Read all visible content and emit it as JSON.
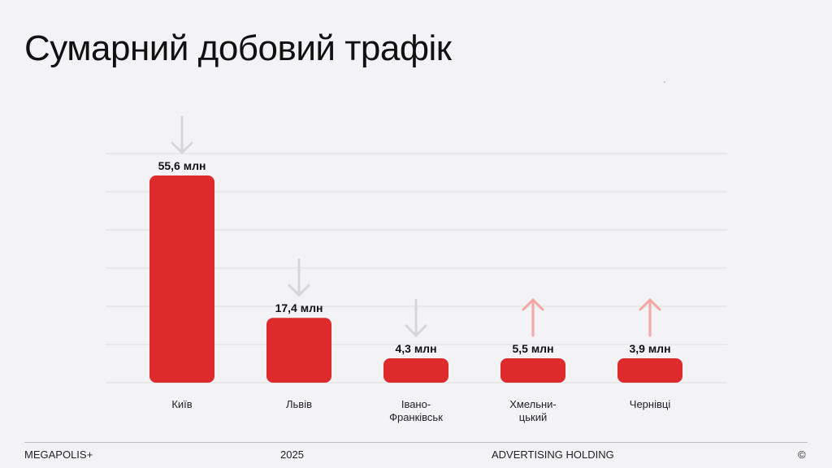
{
  "page": {
    "title": "Сумарний добовий трафік"
  },
  "footer": {
    "brand": "MEGAPOLIS+",
    "year": "2025",
    "holding": "ADVERTISING HOLDING",
    "copyright": "©"
  },
  "colors": {
    "bar": "#dd2a2a",
    "arrow_down": "#d6d6d9",
    "arrow_up": "#f4a5a5",
    "grid": "#dcdce0"
  },
  "chart_data": {
    "type": "bar",
    "categories": [
      "Київ",
      "Львів",
      "Івано-Франківськ",
      "Хмельницький",
      "Чернівці"
    ],
    "category_labels": [
      [
        "Київ"
      ],
      [
        "Львів"
      ],
      [
        "Івано-",
        "Франківськ"
      ],
      [
        "Хмельни-",
        "цький"
      ],
      [
        "Чернівці"
      ]
    ],
    "values": [
      55.6,
      17.4,
      4.3,
      5.5,
      3.9
    ],
    "value_labels": [
      "55,6 млн",
      "17,4 млн",
      "4,3 млн",
      "5,5 млн",
      "3,9 млн"
    ],
    "trend": [
      "down",
      "down",
      "down",
      "up",
      "up"
    ],
    "title": "Сумарний добовий трафік",
    "xlabel": "",
    "ylabel": "",
    "ylim": [
      0,
      60
    ],
    "grid": true,
    "legend": "none"
  }
}
